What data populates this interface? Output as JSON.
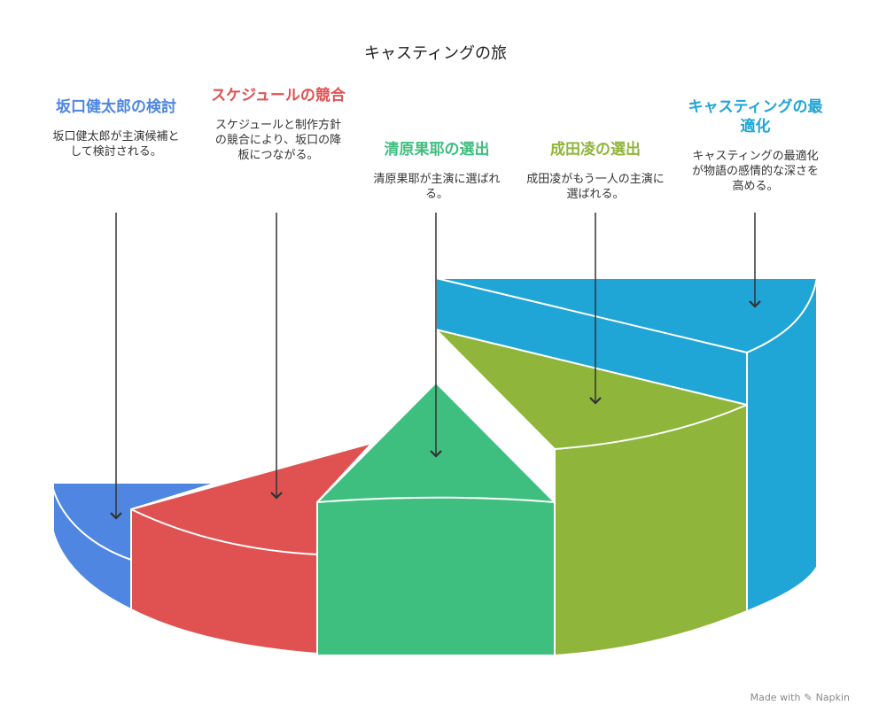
{
  "title": "キャスティングの旅",
  "stages": [
    {
      "title": "坂口健太郎の検討",
      "desc": "坂口健太郎が主演候補として検討される。",
      "color": "#4f86e2"
    },
    {
      "title": "スケジュールの競合",
      "desc": "スケジュールと制作方針の競合により、坂口の降板につながる。",
      "color": "#e05252"
    },
    {
      "title": "清原果耶の選出",
      "desc": "清原果耶が主演に選ばれる。",
      "color": "#3ebf7f"
    },
    {
      "title": "成田凌の選出",
      "desc": "成田凌がもう一人の主演に選ばれる。",
      "color": "#8fb53a"
    },
    {
      "title": "キャスティングの最適化",
      "desc": "キャスティングの最適化が物語の感情的な深さを高める。",
      "color": "#1fa5d6"
    }
  ],
  "footer": {
    "label": "Made with",
    "brand": "Napkin"
  }
}
